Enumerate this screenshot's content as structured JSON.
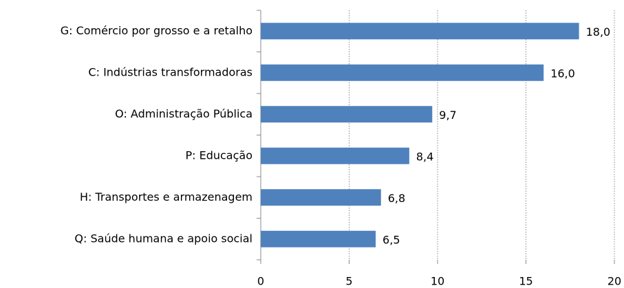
{
  "chart_data": {
    "type": "bar",
    "orientation": "horizontal",
    "categories": [
      "G: Comércio por grosso e a retalho",
      "C: Indústrias transformadoras",
      "O: Administração Pública",
      "P: Educação",
      "H: Transportes e armazenagem",
      "Q: Saúde humana e apoio social"
    ],
    "values": [
      18.0,
      16.0,
      9.7,
      8.4,
      6.8,
      6.5
    ],
    "value_labels": [
      "18,0",
      "16,0",
      "9,7",
      "8,4",
      "6,8",
      "6,5"
    ],
    "color": "#4f81bd",
    "xlim": [
      0,
      20
    ],
    "xticks": [
      0,
      5,
      10,
      15,
      20
    ],
    "grid": true
  }
}
